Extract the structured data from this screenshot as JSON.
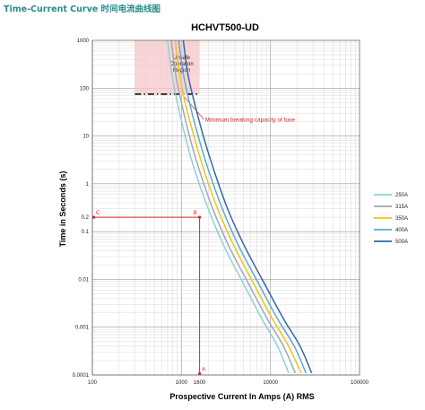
{
  "page_heading": "Time-Current Curve  时间电流曲线图",
  "chart_data": {
    "type": "line",
    "title": "HCHVT500-UD",
    "xlabel": "Prospective Current In Amps (A) RMS",
    "ylabel": "Time in Seconds (s)",
    "x_scale": "log",
    "y_scale": "log",
    "xlim": [
      100,
      100000
    ],
    "ylim": [
      0.0001,
      1000
    ],
    "grid": true,
    "legend_position": "right",
    "x_ticks": [
      "100",
      "1000",
      "10000",
      "100000"
    ],
    "x_extra_tick": "1600",
    "y_ticks": [
      "0.0001",
      "0.001",
      "0.01",
      "0.1",
      "1",
      "10",
      "100",
      "1000"
    ],
    "y_extra_tick": "0.2",
    "series": [
      {
        "name": "250A",
        "color": "#8fd0d6",
        "x": [
          700,
          780,
          900,
          1100,
          1400,
          2000,
          3000,
          5000,
          8000,
          12000,
          16000
        ],
        "y": [
          1000,
          200,
          50,
          10,
          2,
          0.3,
          0.05,
          0.008,
          0.0015,
          0.0004,
          0.00011
        ]
      },
      {
        "name": "315A",
        "color": "#9ea8b4",
        "x": [
          770,
          860,
          1000,
          1230,
          1580,
          2250,
          3400,
          5700,
          9200,
          14000,
          19000
        ],
        "y": [
          1000,
          200,
          50,
          10,
          2,
          0.3,
          0.05,
          0.008,
          0.0015,
          0.0004,
          0.00011
        ]
      },
      {
        "name": "350A",
        "color": "#f2c318",
        "x": [
          850,
          950,
          1100,
          1380,
          1780,
          2550,
          3900,
          6500,
          10500,
          16000,
          22000
        ],
        "y": [
          1000,
          200,
          50,
          10,
          2,
          0.3,
          0.05,
          0.008,
          0.0015,
          0.0004,
          0.00011
        ]
      },
      {
        "name": "400A",
        "color": "#5aa9d9",
        "x": [
          930,
          1050,
          1230,
          1540,
          2000,
          2880,
          4400,
          7400,
          12000,
          18500,
          25000
        ],
        "y": [
          1000,
          200,
          50,
          10,
          2,
          0.3,
          0.05,
          0.008,
          0.0015,
          0.0004,
          0.00011
        ]
      },
      {
        "name": "500A",
        "color": "#3567a8",
        "x": [
          1050,
          1180,
          1400,
          1760,
          2300,
          3300,
          5100,
          8600,
          14000,
          21500,
          29000
        ],
        "y": [
          1000,
          200,
          50,
          10,
          2,
          0.3,
          0.05,
          0.008,
          0.0015,
          0.0004,
          0.00011
        ]
      }
    ],
    "unsafe_region": {
      "label_lines": [
        "Unsafe",
        "Operation",
        "Region"
      ],
      "x": [
        300,
        1600
      ],
      "y": [
        75,
        1000
      ],
      "color": "#f6c7c8"
    },
    "minimum_breaking_capacity": {
      "y": 75,
      "x": [
        300,
        1600
      ],
      "label": "Minimum breaking capacity of fuse"
    },
    "reference_lines": {
      "current": 1600,
      "time": 0.2,
      "point_labels": {
        "C": "C",
        "B": "B",
        "A": "A"
      },
      "color": "#d8232a"
    }
  }
}
